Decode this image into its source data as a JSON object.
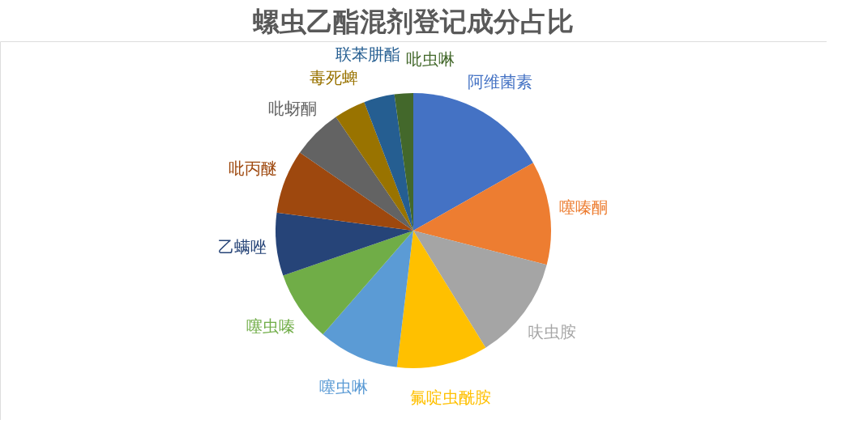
{
  "chart_data": {
    "type": "pie",
    "title": "螺虫乙酯混剂登记成分占比",
    "categories": [
      "阿维菌素",
      "噻嗪酮",
      "呋虫胺",
      "氟啶虫酰胺",
      "噻虫啉",
      "噻虫嗪",
      "乙螨唑",
      "吡丙醚",
      "吡蚜酮",
      "毒死蜱",
      "联苯肼酯",
      "吡虫啉"
    ],
    "values": [
      16.8,
      12.2,
      12.2,
      10.7,
      9.5,
      8.3,
      7.4,
      7.5,
      5.9,
      3.7,
      3.6,
      2.2
    ],
    "colors": [
      "#4472c4",
      "#ed7d31",
      "#a5a5a5",
      "#ffc000",
      "#5b9bd5",
      "#70ad47",
      "#264478",
      "#9e480e",
      "#636363",
      "#997300",
      "#255e91",
      "#43682b"
    ]
  }
}
